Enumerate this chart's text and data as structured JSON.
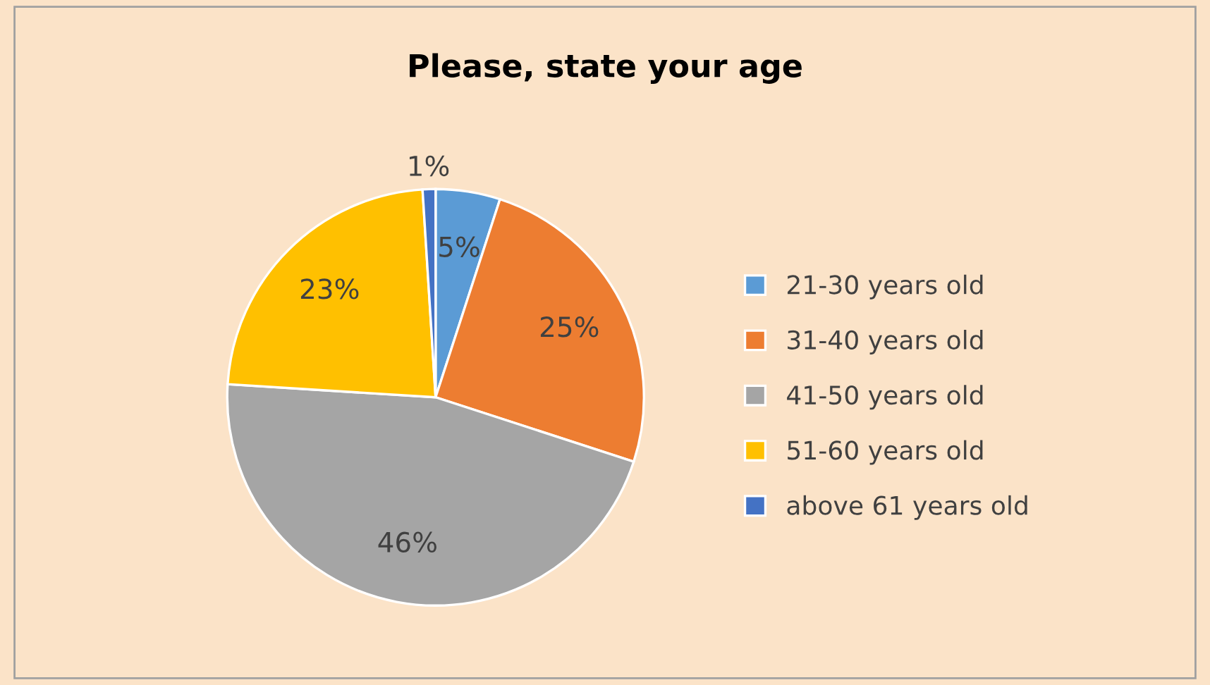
{
  "chart_data": {
    "type": "pie",
    "title": "Please, state your age",
    "categories": [
      "21-30 years old",
      "31-40 years old",
      "41-50 years old",
      "51-60 years old",
      "above 61 years old"
    ],
    "values": [
      5,
      25,
      46,
      23,
      1
    ],
    "colors": [
      "#5b9bd5",
      "#ed7d31",
      "#a5a5a5",
      "#ffc000",
      "#4472c4"
    ],
    "value_labels": [
      "5%",
      "25%",
      "46%",
      "23%",
      "1%"
    ],
    "legend": "right"
  }
}
